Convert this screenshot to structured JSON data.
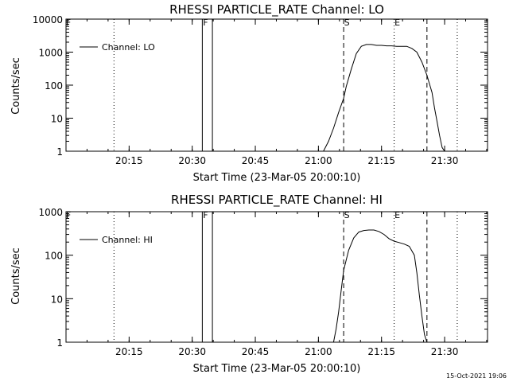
{
  "footer": {
    "timestamp": "15-Oct-2021 19:06"
  },
  "chart_data": [
    {
      "type": "line",
      "title": "RHESSI PARTICLE_RATE Channel: LO",
      "xlabel": "Start Time (23-Mar-05 20:00:10)",
      "ylabel": "Counts/sec",
      "yscale": "log",
      "xlim": [
        20.0,
        21.67
      ],
      "ylim": [
        1,
        10000
      ],
      "x_ticks": [
        {
          "x": 20.25,
          "label": "20:15"
        },
        {
          "x": 20.5,
          "label": "20:30"
        },
        {
          "x": 20.75,
          "label": "20:45"
        },
        {
          "x": 21.0,
          "label": "21:00"
        },
        {
          "x": 21.25,
          "label": "21:15"
        },
        {
          "x": 21.5,
          "label": "21:30"
        }
      ],
      "y_ticks": [
        {
          "y": 1,
          "label": "1"
        },
        {
          "y": 10,
          "label": "10"
        },
        {
          "y": 100,
          "label": "100"
        },
        {
          "y": 1000,
          "label": "1000"
        },
        {
          "y": 10000,
          "label": "10000"
        }
      ],
      "legend": {
        "placement": "top-left"
      },
      "series": [
        {
          "name": "Channel: LO",
          "x": [
            21.02,
            21.04,
            21.06,
            21.08,
            21.1,
            21.11,
            21.13,
            21.15,
            21.17,
            21.19,
            21.21,
            21.23,
            21.25,
            21.27,
            21.29,
            21.31,
            21.33,
            21.35,
            21.37,
            21.39,
            21.41,
            21.43,
            21.45,
            21.46,
            21.47,
            21.48,
            21.49,
            21.5
          ],
          "y": [
            1.0,
            2.0,
            5.0,
            15,
            40,
            90,
            300,
            900,
            1500,
            1700,
            1700,
            1600,
            1600,
            1550,
            1550,
            1500,
            1500,
            1500,
            1300,
            1000,
            500,
            200,
            60,
            20,
            8,
            3,
            1.3,
            1.0
          ]
        }
      ],
      "vlines": [
        {
          "x": 20.19,
          "style": "dotted"
        },
        {
          "x": 20.54,
          "style": "solid",
          "label": "F"
        },
        {
          "x": 20.58,
          "style": "solid"
        },
        {
          "x": 21.1,
          "style": "dashed",
          "label": "S"
        },
        {
          "x": 21.3,
          "style": "dotted",
          "label": "E"
        },
        {
          "x": 21.43,
          "style": "dashed"
        },
        {
          "x": 21.55,
          "style": "dotted"
        }
      ],
      "left_label": "F"
    },
    {
      "type": "line",
      "title": "RHESSI PARTICLE_RATE Channel: HI",
      "xlabel": "Start Time (23-Mar-05 20:00:10)",
      "ylabel": "Counts/sec",
      "yscale": "log",
      "xlim": [
        20.0,
        21.67
      ],
      "ylim": [
        1,
        1000
      ],
      "x_ticks": [
        {
          "x": 20.25,
          "label": "20:15"
        },
        {
          "x": 20.5,
          "label": "20:30"
        },
        {
          "x": 20.75,
          "label": "20:45"
        },
        {
          "x": 21.0,
          "label": "21:00"
        },
        {
          "x": 21.25,
          "label": "21:15"
        },
        {
          "x": 21.5,
          "label": "21:30"
        }
      ],
      "y_ticks": [
        {
          "y": 1,
          "label": "1"
        },
        {
          "y": 10,
          "label": "10"
        },
        {
          "y": 100,
          "label": "100"
        },
        {
          "y": 1000,
          "label": "1000"
        }
      ],
      "legend": {
        "placement": "top-left"
      },
      "series": [
        {
          "name": "Channel: HI",
          "x": [
            21.06,
            21.07,
            21.08,
            21.09,
            21.1,
            21.12,
            21.14,
            21.16,
            21.18,
            21.2,
            21.22,
            21.24,
            21.26,
            21.28,
            21.3,
            21.32,
            21.34,
            21.36,
            21.38,
            21.39,
            21.4,
            21.41,
            21.42,
            21.43
          ],
          "y": [
            1.0,
            2.0,
            5.0,
            15,
            45,
            130,
            250,
            340,
            370,
            380,
            380,
            350,
            300,
            240,
            210,
            195,
            180,
            160,
            100,
            40,
            12,
            4,
            1.5,
            1.0
          ]
        }
      ],
      "vlines": [
        {
          "x": 20.19,
          "style": "dotted"
        },
        {
          "x": 20.54,
          "style": "solid",
          "label": "F"
        },
        {
          "x": 20.58,
          "style": "solid"
        },
        {
          "x": 21.1,
          "style": "dashed",
          "label": "S"
        },
        {
          "x": 21.3,
          "style": "dotted",
          "label": "E"
        },
        {
          "x": 21.43,
          "style": "dashed"
        },
        {
          "x": 21.55,
          "style": "dotted"
        }
      ],
      "left_label": "F"
    }
  ]
}
